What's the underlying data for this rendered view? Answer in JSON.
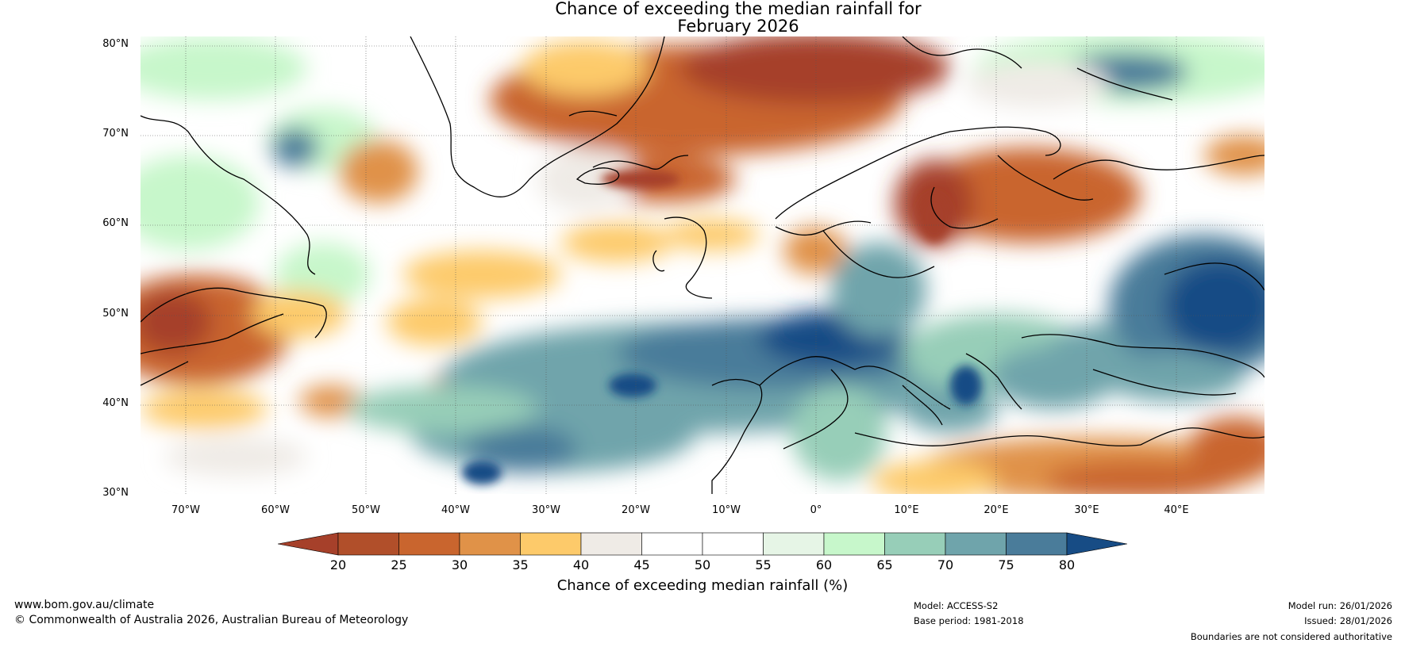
{
  "title": {
    "line1": "Chance of exceeding the median rainfall for",
    "line2": "February 2026"
  },
  "lat_labels": [
    "80°N",
    "70°N",
    "60°N",
    "50°N",
    "40°N",
    "30°N"
  ],
  "lon_labels": [
    "70°W",
    "60°W",
    "50°W",
    "40°W",
    "30°W",
    "20°W",
    "10°W",
    "0°",
    "10°E",
    "20°E",
    "30°E",
    "40°E"
  ],
  "colorbar": {
    "ticks": [
      "20",
      "25",
      "30",
      "35",
      "40",
      "45",
      "50",
      "55",
      "60",
      "65",
      "70",
      "75",
      "80"
    ],
    "colors": [
      "#a6402a",
      "#b14f2a",
      "#c9652e",
      "#e09248",
      "#fdca6a",
      "#efebe6",
      "#ffffff",
      "#ffffff",
      "#e6f5e6",
      "#c7f7cb",
      "#97ceb8",
      "#6fa4ab",
      "#4a7c9a",
      "#174c85"
    ],
    "label": "Chance of exceeding median rainfall (%)"
  },
  "footer": {
    "url": "www.bom.gov.au/climate",
    "copyright": "© Commonwealth of Australia 2026, Australian Bureau of Meteorology",
    "model": "Model: ACCESS-S2",
    "base_period": "Base period: 1981-2018",
    "model_run": "Model run: 26/01/2026",
    "issued": "Issued: 28/01/2026",
    "disclaimer": "Boundaries are not considered authoritative"
  }
}
